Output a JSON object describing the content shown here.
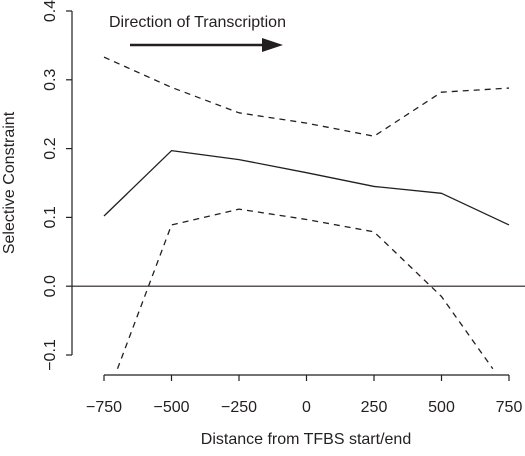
{
  "chart_data": {
    "type": "line",
    "title": "",
    "xlabel": "Distance from TFBS start/end",
    "ylabel": "Selective Constraint",
    "xlim": [
      -800,
      800
    ],
    "ylim": [
      -0.12,
      0.4
    ],
    "x_ticks": [
      -750,
      -500,
      -250,
      0,
      250,
      500,
      750
    ],
    "x_tick_labels": [
      "−750",
      "−500",
      "−250",
      "0",
      "250",
      "500",
      "750"
    ],
    "y_ticks": [
      -0.1,
      0.0,
      0.1,
      0.2,
      0.3,
      0.4
    ],
    "y_tick_labels": [
      "−0.1",
      "0.0",
      "0.1",
      "0.2",
      "0.3",
      "0.4"
    ],
    "reference_line_y": 0.0,
    "grid": false,
    "annotation": {
      "text": "Direction of Transcription",
      "arrow": "right"
    },
    "series": [
      {
        "style": "solid",
        "x": [
          -750,
          -500,
          -250,
          0,
          250,
          500,
          750
        ],
        "y": [
          0.102,
          0.197,
          0.184,
          0.165,
          0.145,
          0.135,
          0.089
        ]
      },
      {
        "style": "dashed",
        "x": [
          -750,
          -500,
          -250,
          0,
          250,
          500,
          750
        ],
        "y": [
          0.333,
          0.289,
          0.252,
          0.237,
          0.218,
          0.282,
          0.288
        ]
      },
      {
        "style": "dashed",
        "x": [
          -700,
          -500,
          -250,
          0,
          250,
          500,
          690
        ],
        "y": [
          -0.12,
          0.089,
          0.112,
          0.097,
          0.079,
          -0.015,
          -0.12
        ]
      }
    ],
    "colors": {
      "line": "#231f20",
      "text": "#231f20"
    }
  }
}
